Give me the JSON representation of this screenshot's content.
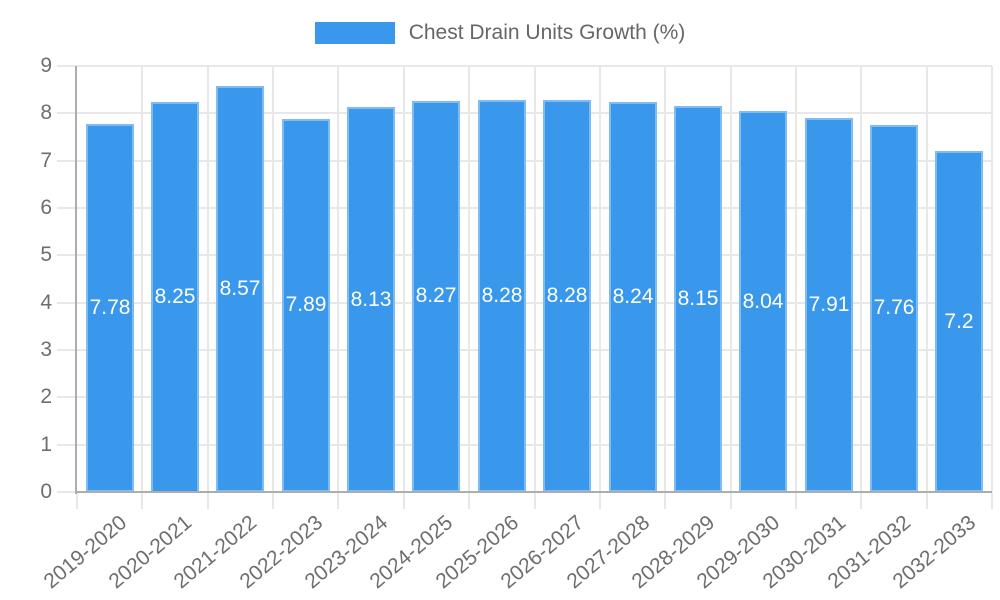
{
  "chart_data": {
    "type": "bar",
    "title": "Chest Drain Units Growth (%)",
    "categories": [
      "2019-2020",
      "2020-2021",
      "2021-2022",
      "2022-2023",
      "2023-2024",
      "2024-2025",
      "2025-2026",
      "2026-2027",
      "2027-2028",
      "2028-2029",
      "2029-2030",
      "2030-2031",
      "2031-2032",
      "2032-2033"
    ],
    "series": [
      {
        "name": "Chest Drain Units Growth (%)",
        "values": [
          7.78,
          8.25,
          8.57,
          7.89,
          8.13,
          8.27,
          8.28,
          8.28,
          8.24,
          8.15,
          8.04,
          7.91,
          7.76,
          7.2
        ]
      }
    ],
    "xlabel": "",
    "ylabel": "",
    "ylim": [
      0,
      9
    ],
    "yticks": [
      0,
      1,
      2,
      3,
      4,
      5,
      6,
      7,
      8,
      9
    ],
    "grid": true,
    "legend_position": "top-center",
    "value_label_position": "inside-center",
    "x_tick_rotation_deg": -40,
    "colors": {
      "bar": "#3A98EC",
      "grid": "#E8E8E8",
      "axis": "#ADADAD",
      "tick_label": "#6E6E6E",
      "legend_text": "#666666",
      "value_label": "#FFFFFF",
      "background": "#FFFFFF"
    }
  }
}
